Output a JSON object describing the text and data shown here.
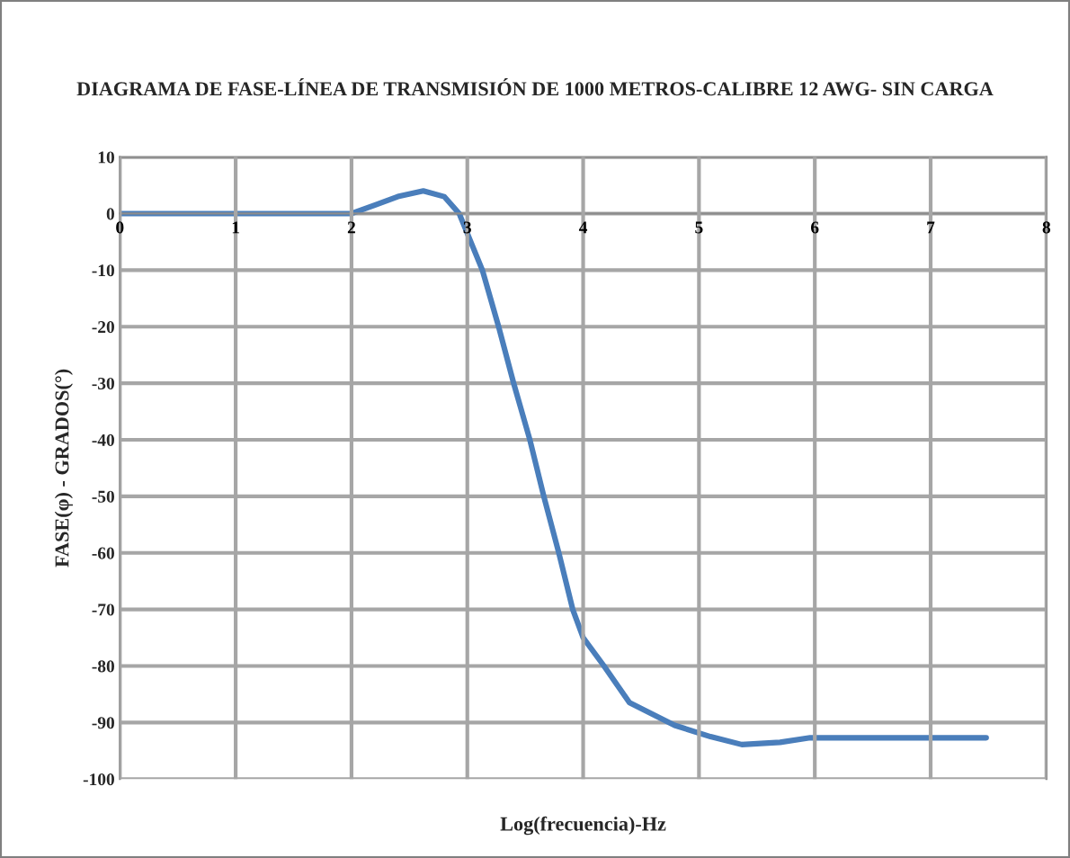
{
  "chart_data": {
    "type": "line",
    "title": "DIAGRAMA DE FASE-LÍNEA DE TRANSMISIÓN DE 1000 METROS-CALIBRE 12 AWG- SIN CARGA",
    "xlabel": "Log(frecuencia)-Hz",
    "ylabel": "FASE(φ) - GRADOS(°)",
    "series": [
      {
        "color": "#4a7ebb",
        "x": [
          0,
          0.5,
          1,
          1.5,
          2,
          2.2,
          2.4,
          2.62,
          2.8,
          2.93,
          3.13,
          3.27,
          3.4,
          3.54,
          3.66,
          3.79,
          3.91,
          4.0,
          4.18,
          4.4,
          4.79,
          5.1,
          5.37,
          5.7,
          5.96,
          6.5,
          7,
          7.48
        ],
        "values": [
          0,
          0,
          0,
          0,
          0,
          1.5,
          3,
          4,
          3,
          0,
          -10,
          -20,
          -30,
          -40,
          -50,
          -60,
          -70,
          -75,
          -80,
          -86.5,
          -90.5,
          -92.5,
          -93.9,
          -93.5,
          -92.7,
          -92.7,
          -92.7,
          -92.7
        ]
      }
    ],
    "xlim": [
      0,
      8
    ],
    "xticks": [
      0,
      1,
      2,
      3,
      4,
      5,
      6,
      7,
      8
    ],
    "ylim": [
      -100,
      10
    ],
    "yticks": [
      -100,
      -90,
      -80,
      -70,
      -60,
      -50,
      -40,
      -30,
      -20,
      -10,
      0,
      10
    ],
    "grid": true,
    "legend": false,
    "marker": "none",
    "line_style": "solid"
  }
}
